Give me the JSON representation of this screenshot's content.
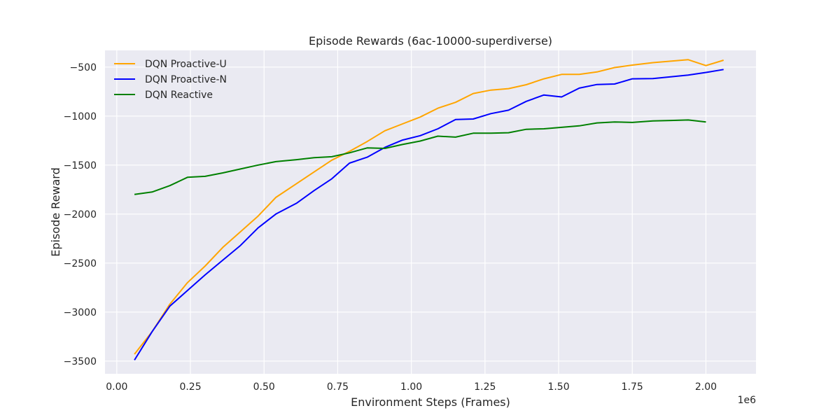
{
  "chart_data": {
    "type": "line",
    "title": "Episode Rewards (6ac-10000-superdiverse)",
    "xlabel": "Environment Steps (Frames)",
    "ylabel": "Episode Reward",
    "x_offset_label": "1e6",
    "xlim": [
      -0.04,
      2.17
    ],
    "ylim": [
      -3630,
      -330
    ],
    "xticks": [
      0,
      0.25,
      0.5,
      0.75,
      1.0,
      1.25,
      1.5,
      1.75,
      2.0
    ],
    "xtick_labels": [
      "0.00",
      "0.25",
      "0.50",
      "0.75",
      "1.00",
      "1.25",
      "1.50",
      "1.75",
      "2.00"
    ],
    "yticks": [
      -3500,
      -3000,
      -2500,
      -2000,
      -1500,
      -1000,
      -500
    ],
    "ytick_labels": [
      "−3500",
      "−3000",
      "−2500",
      "−2000",
      "−1500",
      "−1000",
      "−500"
    ],
    "grid": true,
    "legend_position": "top-left",
    "series": [
      {
        "name": "DQN Proactive-U",
        "color": "#FFA500",
        "x": [
          0.06,
          0.12,
          0.18,
          0.24,
          0.3,
          0.36,
          0.42,
          0.48,
          0.54,
          0.61,
          0.67,
          0.73,
          0.79,
          0.85,
          0.91,
          0.97,
          1.03,
          1.09,
          1.15,
          1.21,
          1.27,
          1.33,
          1.39,
          1.45,
          1.51,
          1.57,
          1.63,
          1.69,
          1.75,
          1.82,
          1.88,
          1.94,
          2.0,
          2.06
        ],
        "y": [
          -3430,
          -3200,
          -2920,
          -2700,
          -2530,
          -2340,
          -2180,
          -2020,
          -1830,
          -1690,
          -1570,
          -1450,
          -1360,
          -1260,
          -1150,
          -1080,
          -1010,
          -920,
          -860,
          -770,
          -735,
          -720,
          -680,
          -620,
          -575,
          -575,
          -550,
          -505,
          -480,
          -455,
          -440,
          -425,
          -485,
          -430
        ]
      },
      {
        "name": "DQN Proactive-N",
        "color": "#0000FF",
        "x": [
          0.06,
          0.12,
          0.18,
          0.24,
          0.3,
          0.36,
          0.42,
          0.48,
          0.54,
          0.61,
          0.67,
          0.73,
          0.79,
          0.85,
          0.91,
          0.97,
          1.03,
          1.09,
          1.15,
          1.21,
          1.27,
          1.33,
          1.39,
          1.45,
          1.51,
          1.57,
          1.63,
          1.69,
          1.75,
          1.82,
          1.88,
          1.94,
          2.0,
          2.06
        ],
        "y": [
          -3490,
          -3200,
          -2940,
          -2780,
          -2620,
          -2470,
          -2320,
          -2140,
          -2000,
          -1890,
          -1760,
          -1640,
          -1480,
          -1420,
          -1320,
          -1245,
          -1200,
          -1130,
          -1035,
          -1030,
          -975,
          -940,
          -850,
          -785,
          -805,
          -715,
          -678,
          -673,
          -620,
          -618,
          -600,
          -582,
          -555,
          -525
        ]
      },
      {
        "name": "DQN Reactive",
        "color": "#008000",
        "x": [
          0.06,
          0.12,
          0.18,
          0.24,
          0.3,
          0.36,
          0.42,
          0.48,
          0.54,
          0.61,
          0.67,
          0.73,
          0.79,
          0.85,
          0.91,
          0.97,
          1.03,
          1.09,
          1.15,
          1.21,
          1.27,
          1.33,
          1.39,
          1.45,
          1.51,
          1.57,
          1.63,
          1.69,
          1.75,
          1.82,
          1.88,
          1.94,
          2.0
        ],
        "y": [
          -1800,
          -1775,
          -1710,
          -1625,
          -1615,
          -1580,
          -1540,
          -1500,
          -1465,
          -1445,
          -1425,
          -1415,
          -1375,
          -1325,
          -1330,
          -1290,
          -1255,
          -1205,
          -1215,
          -1175,
          -1175,
          -1170,
          -1135,
          -1130,
          -1115,
          -1100,
          -1070,
          -1060,
          -1065,
          -1050,
          -1045,
          -1040,
          -1060
        ]
      }
    ]
  }
}
